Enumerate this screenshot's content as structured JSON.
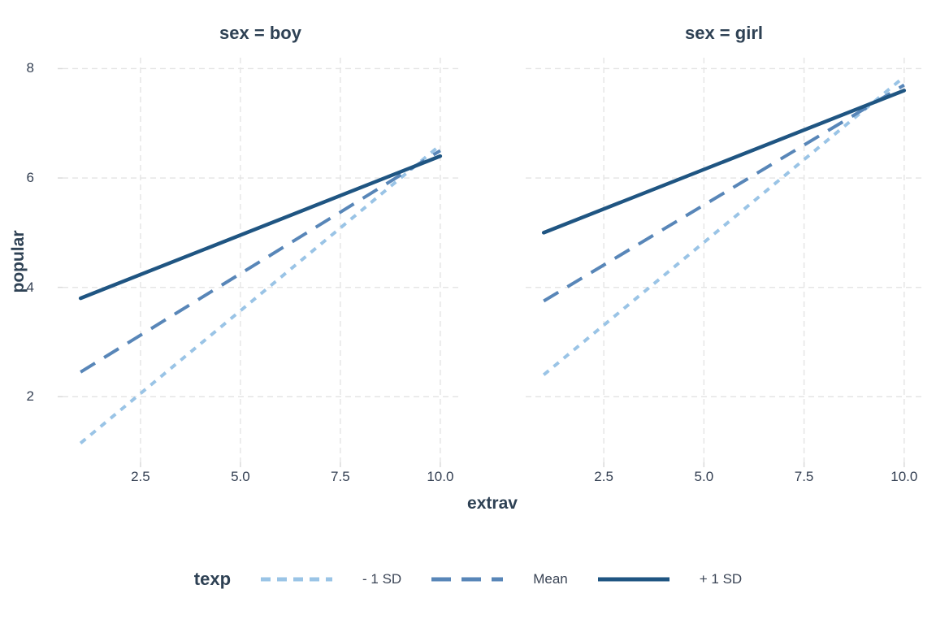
{
  "figure": {
    "background": "#FFFFFF"
  },
  "chart_data": {
    "type": "line",
    "title": "",
    "xlabel": "extrav",
    "ylabel": "popular",
    "xlim": [
      0.55,
      10.45
    ],
    "ylim": [
      0.8,
      8.2
    ],
    "x_ticks": [
      "2.5",
      "5.0",
      "7.5",
      "10.0"
    ],
    "x_tick_values": [
      2.5,
      5.0,
      7.5,
      10.0
    ],
    "y_ticks": [
      "2",
      "4",
      "6",
      "8"
    ],
    "y_tick_values": [
      2,
      4,
      6,
      8
    ],
    "grid": {
      "visible": true,
      "style": "dashed",
      "color": "#E4E4E4"
    },
    "facets": [
      {
        "title": "sex = boy",
        "series": [
          {
            "name": "- 1 SD",
            "style": "dotted",
            "color": "#9AC4E6",
            "x": [
              1,
              10
            ],
            "y": [
              1.15,
              6.6
            ]
          },
          {
            "name": "Mean",
            "style": "dashed",
            "color": "#5886B8",
            "x": [
              1,
              10
            ],
            "y": [
              2.45,
              6.5
            ]
          },
          {
            "name": "+ 1 SD",
            "style": "solid",
            "color": "#1F5582",
            "x": [
              1,
              10
            ],
            "y": [
              3.8,
              6.4
            ]
          }
        ]
      },
      {
        "title": "sex = girl",
        "series": [
          {
            "name": "- 1 SD",
            "style": "dotted",
            "color": "#9AC4E6",
            "x": [
              1,
              10
            ],
            "y": [
              2.4,
              7.85
            ]
          },
          {
            "name": "Mean",
            "style": "dashed",
            "color": "#5886B8",
            "x": [
              1,
              10
            ],
            "y": [
              3.75,
              7.7
            ]
          },
          {
            "name": "+ 1 SD",
            "style": "solid",
            "color": "#1F5582",
            "x": [
              1,
              10
            ],
            "y": [
              5.0,
              7.6
            ]
          }
        ]
      }
    ],
    "legend": {
      "title": "texp",
      "position": "bottom",
      "entries": [
        {
          "label": "- 1 SD",
          "style": "dotted",
          "color": "#9AC4E6"
        },
        {
          "label": "Mean",
          "style": "dashed",
          "color": "#5886B8"
        },
        {
          "label": "+ 1 SD",
          "style": "solid",
          "color": "#1F5582"
        }
      ]
    },
    "text_colors": {
      "title": "#2E4154",
      "tick": "#333F52",
      "legend_label": "#3A4455"
    }
  }
}
